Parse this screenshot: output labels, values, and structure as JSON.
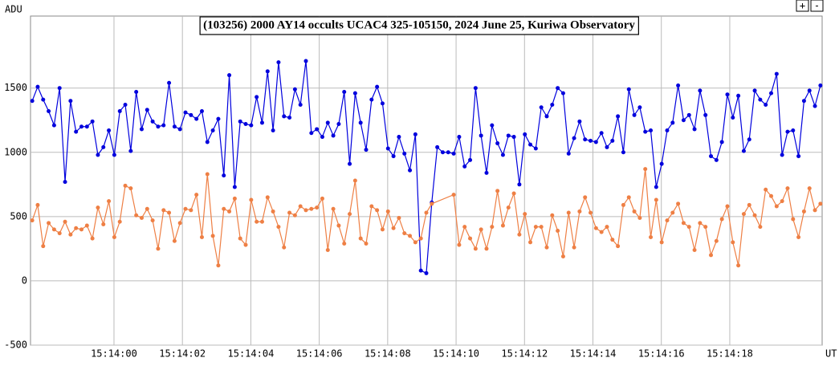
{
  "chart_data": {
    "type": "line",
    "title": "(103256) 2000 AY14 occults UCAC4 325-105150, 2024 June 25, Kuriwa Observatory",
    "ylabel": "ADU",
    "xlabel": "UT",
    "xlim": [
      -2.44,
      20.7
    ],
    "ylim": [
      -500,
      2060
    ],
    "yticks": [
      -500,
      0,
      500,
      1000,
      1500
    ],
    "xticks": [
      {
        "value": 0,
        "label": "15:14:00"
      },
      {
        "value": 2,
        "label": "15:14:02"
      },
      {
        "value": 4,
        "label": "15:14:04"
      },
      {
        "value": 6,
        "label": "15:14:06"
      },
      {
        "value": 8,
        "label": "15:14:08"
      },
      {
        "value": 10,
        "label": "15:14:10"
      },
      {
        "value": 12,
        "label": "15:14:12"
      },
      {
        "value": 14,
        "label": "15:14:14"
      },
      {
        "value": 16,
        "label": "15:14:16"
      },
      {
        "value": 18,
        "label": "15:14:18"
      }
    ],
    "grid": true,
    "series": [
      {
        "color": "#0000dd",
        "x": [
          -2.39,
          -2.23,
          -2.07,
          -1.91,
          -1.75,
          -1.59,
          -1.43,
          -1.27,
          -1.11,
          -0.95,
          -0.79,
          -0.63,
          -0.47,
          -0.31,
          -0.15,
          0.01,
          0.17,
          0.33,
          0.49,
          0.65,
          0.81,
          0.97,
          1.13,
          1.29,
          1.45,
          1.61,
          1.77,
          1.93,
          2.09,
          2.25,
          2.41,
          2.57,
          2.73,
          2.89,
          3.05,
          3.21,
          3.37,
          3.53,
          3.69,
          3.85,
          4.01,
          4.17,
          4.33,
          4.49,
          4.65,
          4.81,
          4.97,
          5.13,
          5.29,
          5.45,
          5.61,
          5.77,
          5.93,
          6.09,
          6.25,
          6.41,
          6.57,
          6.73,
          6.89,
          7.05,
          7.21,
          7.37,
          7.53,
          7.69,
          7.85,
          8.01,
          8.17,
          8.33,
          8.49,
          8.65,
          8.81,
          8.97,
          9.13,
          9.29,
          9.45,
          9.61,
          9.77,
          9.93,
          10.09,
          10.25,
          10.41,
          10.57,
          10.73,
          10.89,
          11.05,
          11.21,
          11.37,
          11.53,
          11.69,
          11.85,
          12.01,
          12.17,
          12.33,
          12.49,
          12.65,
          12.81,
          12.97,
          13.13,
          13.29,
          13.45,
          13.61,
          13.77,
          13.93,
          14.09,
          14.25,
          14.41,
          14.57,
          14.73,
          14.89,
          15.05,
          15.21,
          15.37,
          15.53,
          15.69,
          15.85,
          16.01,
          16.17,
          16.33,
          16.49,
          16.65,
          16.81,
          16.97,
          17.13,
          17.29,
          17.45,
          17.61,
          17.77,
          17.93,
          18.09,
          18.25,
          18.41,
          18.57,
          18.73,
          18.89,
          19.05,
          19.21,
          19.37,
          19.53,
          19.69,
          19.85,
          20.01,
          20.17,
          20.33,
          20.49,
          20.65
        ],
        "values": [
          1400,
          1510,
          1410,
          1320,
          1210,
          1500,
          770,
          1400,
          1160,
          1200,
          1200,
          1240,
          980,
          1040,
          1170,
          980,
          1320,
          1370,
          1010,
          1470,
          1180,
          1330,
          1240,
          1200,
          1210,
          1540,
          1200,
          1180,
          1310,
          1290,
          1260,
          1320,
          1080,
          1170,
          1260,
          820,
          1600,
          730,
          1240,
          1220,
          1210,
          1430,
          1230,
          1630,
          1170,
          1700,
          1280,
          1270,
          1490,
          1370,
          1710,
          1150,
          1180,
          1120,
          1230,
          1130,
          1220,
          1470,
          910,
          1460,
          1230,
          1020,
          1410,
          1510,
          1380,
          1030,
          970,
          1120,
          990,
          860,
          1140,
          80,
          60,
          610,
          1040,
          1000,
          1000,
          990,
          1120,
          890,
          940,
          1500,
          1130,
          840,
          1210,
          1070,
          980,
          1130,
          1120,
          750,
          1140,
          1060,
          1030,
          1350,
          1280,
          1370,
          1500,
          1460,
          990,
          1110,
          1240,
          1100,
          1090,
          1080,
          1150,
          1040,
          1090,
          1280,
          1000,
          1490,
          1290,
          1350,
          1160,
          1170,
          730,
          910,
          1170,
          1230,
          1520,
          1250,
          1290,
          1180,
          1480,
          1290,
          970,
          940,
          1080,
          1450,
          1270,
          1440,
          1010,
          1100,
          1480,
          1410,
          1370,
          1460,
          1610,
          980,
          1160,
          1170,
          970,
          1400,
          1480,
          1360,
          1520
        ]
      },
      {
        "color": "#ee7f44",
        "x": [
          -2.39,
          -2.23,
          -2.07,
          -1.91,
          -1.75,
          -1.59,
          -1.43,
          -1.27,
          -1.11,
          -0.95,
          -0.79,
          -0.63,
          -0.47,
          -0.31,
          -0.15,
          0.01,
          0.17,
          0.33,
          0.49,
          0.65,
          0.81,
          0.97,
          1.13,
          1.29,
          1.45,
          1.61,
          1.77,
          1.93,
          2.09,
          2.25,
          2.41,
          2.57,
          2.73,
          2.89,
          3.05,
          3.21,
          3.37,
          3.53,
          3.69,
          3.85,
          4.01,
          4.17,
          4.33,
          4.49,
          4.65,
          4.81,
          4.97,
          5.13,
          5.29,
          5.45,
          5.61,
          5.77,
          5.93,
          6.09,
          6.25,
          6.41,
          6.57,
          6.73,
          6.89,
          7.05,
          7.21,
          7.37,
          7.53,
          7.69,
          7.85,
          8.01,
          8.17,
          8.33,
          8.49,
          8.65,
          8.81,
          8.97,
          9.13,
          9.29,
          9.93,
          10.09,
          10.25,
          10.41,
          10.57,
          10.73,
          10.89,
          11.05,
          11.21,
          11.37,
          11.53,
          11.69,
          11.85,
          12.01,
          12.17,
          12.33,
          12.49,
          12.65,
          12.81,
          12.97,
          13.13,
          13.29,
          13.45,
          13.61,
          13.77,
          13.93,
          14.09,
          14.25,
          14.41,
          14.57,
          14.73,
          14.89,
          15.05,
          15.21,
          15.37,
          15.53,
          15.69,
          15.85,
          16.01,
          16.17,
          16.33,
          16.49,
          16.65,
          16.81,
          16.97,
          17.13,
          17.29,
          17.45,
          17.61,
          17.77,
          17.93,
          18.09,
          18.25,
          18.41,
          18.57,
          18.73,
          18.89,
          19.05,
          19.21,
          19.37,
          19.53,
          19.69,
          19.85,
          20.01,
          20.17,
          20.33,
          20.49,
          20.65
        ],
        "values": [
          470,
          590,
          270,
          450,
          400,
          370,
          460,
          360,
          410,
          400,
          430,
          330,
          570,
          440,
          620,
          340,
          460,
          740,
          720,
          510,
          490,
          560,
          470,
          250,
          550,
          530,
          310,
          450,
          560,
          550,
          670,
          340,
          830,
          350,
          120,
          560,
          540,
          640,
          330,
          280,
          630,
          460,
          460,
          650,
          540,
          420,
          260,
          530,
          510,
          580,
          550,
          560,
          570,
          640,
          240,
          560,
          430,
          290,
          520,
          780,
          330,
          290,
          580,
          550,
          400,
          540,
          410,
          490,
          370,
          350,
          300,
          330,
          530,
          600,
          670,
          280,
          420,
          330,
          250,
          400,
          250,
          420,
          700,
          430,
          570,
          680,
          360,
          520,
          300,
          420,
          420,
          260,
          510,
          390,
          190,
          530,
          260,
          540,
          650,
          530,
          410,
          380,
          420,
          320,
          270,
          590,
          650,
          540,
          490,
          870,
          340,
          630,
          300,
          470,
          530,
          600,
          450,
          420,
          240,
          450,
          420,
          200,
          310,
          480,
          580,
          300,
          120,
          520,
          590,
          510,
          420,
          710,
          660,
          580,
          620,
          720,
          480,
          340,
          540,
          720,
          550,
          600
        ]
      }
    ]
  },
  "buttons": [
    "+",
    "-"
  ]
}
